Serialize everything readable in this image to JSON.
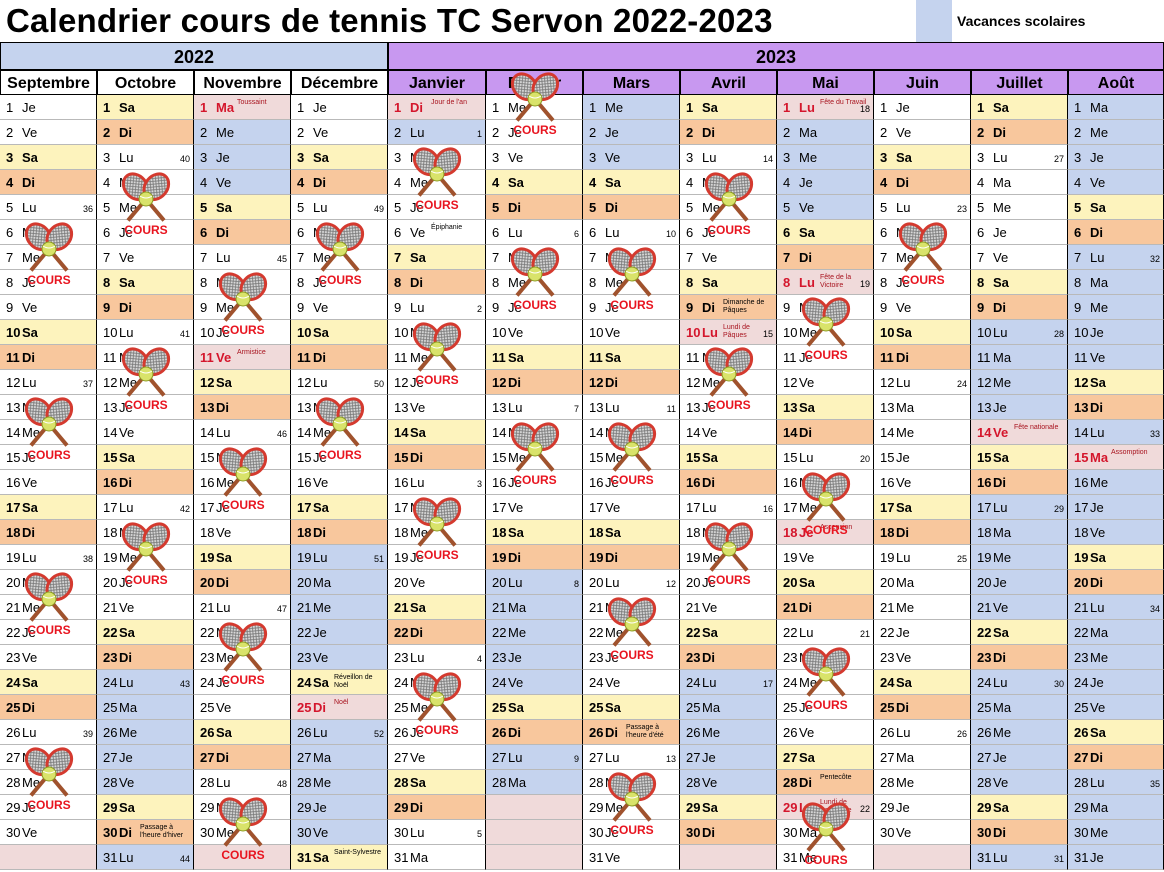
{
  "title": "Calendrier cours de tennis TC Servon  2022-2023",
  "legend": {
    "label": "Vacances scolaires",
    "color": "#c5d3ee"
  },
  "colors": {
    "sat": "#fdf3bd",
    "sun": "#f8c79d",
    "vac": "#c5d3ee",
    "hol": "#f0dada",
    "blank": "#f0dada",
    "year2022": "#c5d3ee",
    "year2023": "#c898f0",
    "month2022": "#ffffff",
    "month2023": "#c898f0"
  },
  "cours_label": "COURS",
  "years": [
    "2022",
    "2023"
  ],
  "months": [
    {
      "name": "Septembre",
      "days": [
        "1 Je",
        "2 Ve",
        "3 Sa",
        "4 Di",
        "5 Lu",
        "6 Ma",
        "7 Me",
        "8 Je",
        "9 Ve",
        "10 Sa",
        "11 Di",
        "12 Lu",
        "13 Ma",
        "14 Me",
        "15 Je",
        "16 Ve",
        "17 Sa",
        "18 Di",
        "19 Lu",
        "20 Ma",
        "21 Me",
        "22 Je",
        "23 Ve",
        "24 Sa",
        "25 Di",
        "26 Lu",
        "27 Ma",
        "28 Me",
        "29 Je",
        "30 Ve"
      ],
      "weeks": {
        "5": "36",
        "12": "37",
        "19": "38",
        "26": "39"
      },
      "vac": [],
      "cours": [
        7,
        14,
        21,
        28
      ],
      "notes": {},
      "hol": []
    },
    {
      "name": "Octobre",
      "days": [
        "1 Sa",
        "2 Di",
        "3 Lu",
        "4 Ma",
        "5 Me",
        "6 Je",
        "7 Ve",
        "8 Sa",
        "9 Di",
        "10 Lu",
        "11 Ma",
        "12 Me",
        "13 Je",
        "14 Ve",
        "15 Sa",
        "16 Di",
        "17 Lu",
        "18 Ma",
        "19 Me",
        "20 Je",
        "21 Ve",
        "22 Sa",
        "23 Di",
        "24 Lu",
        "25 Ma",
        "26 Me",
        "27 Je",
        "28 Ve",
        "29 Sa",
        "30 Di",
        "31 Lu"
      ],
      "weeks": {
        "3": "40",
        "10": "41",
        "17": "42",
        "24": "43",
        "31": "44"
      },
      "vac": [
        24,
        25,
        26,
        27,
        28,
        29,
        30,
        31
      ],
      "cours": [
        5,
        12,
        19
      ],
      "notes": {
        "30": "Passage à l'heure d'hiver"
      },
      "hol": []
    },
    {
      "name": "Novembre",
      "days": [
        "1 Ma",
        "2 Me",
        "3 Je",
        "4 Ve",
        "5 Sa",
        "6 Di",
        "7 Lu",
        "8 Ma",
        "9 Me",
        "10 Je",
        "11 Ve",
        "12 Sa",
        "13 Di",
        "14 Lu",
        "15 Ma",
        "16 Me",
        "17 Je",
        "18 Ve",
        "19 Sa",
        "20 Di",
        "21 Lu",
        "22 Ma",
        "23 Me",
        "24 Je",
        "25 Ve",
        "26 Sa",
        "27 Di",
        "28 Lu",
        "29 Ma",
        "30 Me"
      ],
      "weeks": {
        "7": "45",
        "14": "46",
        "21": "47",
        "28": "48"
      },
      "vac": [
        2,
        3,
        4,
        5,
        6
      ],
      "cours": [
        9,
        16,
        23,
        30
      ],
      "notes": {
        "1": "Toussaint",
        "11": "Armistice"
      },
      "hol": [
        1,
        11
      ]
    },
    {
      "name": "Décembre",
      "days": [
        "1 Je",
        "2 Ve",
        "3 Sa",
        "4 Di",
        "5 Lu",
        "6 Ma",
        "7 Me",
        "8 Je",
        "9 Ve",
        "10 Sa",
        "11 Di",
        "12 Lu",
        "13 Ma",
        "14 Me",
        "15 Je",
        "16 Ve",
        "17 Sa",
        "18 Di",
        "19 Lu",
        "20 Ma",
        "21 Me",
        "22 Je",
        "23 Ve",
        "24 Sa",
        "25 Di",
        "26 Lu",
        "27 Ma",
        "28 Me",
        "29 Je",
        "30 Ve",
        "31 Sa"
      ],
      "weeks": {
        "5": "49",
        "12": "50",
        "19": "51",
        "26": "52"
      },
      "vac": [
        17,
        18,
        19,
        20,
        21,
        22,
        23,
        24,
        25,
        26,
        27,
        28,
        29,
        30,
        31
      ],
      "cours": [
        7,
        14
      ],
      "notes": {
        "24": "Réveillon de Noël",
        "25": "Noël",
        "31": "Saint-Sylvestre"
      },
      "hol": [
        25
      ]
    },
    {
      "name": "Janvier",
      "days": [
        "1 Di",
        "2 Lu",
        "3 Ma",
        "4 Me",
        "5 Je",
        "6 Ve",
        "7 Sa",
        "8 Di",
        "9 Lu",
        "10 Ma",
        "11 Me",
        "12 Je",
        "13 Ve",
        "14 Sa",
        "15 Di",
        "16 Lu",
        "17 Ma",
        "18 Me",
        "19 Je",
        "20 Ve",
        "21 Sa",
        "22 Di",
        "23 Lu",
        "24 Ma",
        "25 Me",
        "26 Je",
        "27 Ve",
        "28 Sa",
        "29 Di",
        "30 Lu",
        "31 Ma"
      ],
      "weeks": {
        "2": "1",
        "9": "2",
        "16": "3",
        "23": "4",
        "30": "5"
      },
      "vac": [
        1,
        2
      ],
      "cours": [
        4,
        11,
        18,
        25
      ],
      "notes": {
        "1": "Jour de l'an",
        "6": "Épiphanie"
      },
      "hol": [
        1
      ]
    },
    {
      "name": "Février",
      "days": [
        "1 Me",
        "2 Je",
        "3 Ve",
        "4 Sa",
        "5 Di",
        "6 Lu",
        "7 Ma",
        "8 Me",
        "9 Je",
        "10 Ve",
        "11 Sa",
        "12 Di",
        "13 Lu",
        "14 Ma",
        "15 Me",
        "16 Je",
        "17 Ve",
        "18 Sa",
        "19 Di",
        "20 Lu",
        "21 Ma",
        "22 Me",
        "23 Je",
        "24 Ve",
        "25 Sa",
        "26 Di",
        "27 Lu",
        "28 Ma"
      ],
      "weeks": {
        "6": "6",
        "13": "7",
        "20": "8",
        "27": "9"
      },
      "vac": [
        18,
        19,
        20,
        21,
        22,
        23,
        24,
        25,
        26,
        27,
        28
      ],
      "cours": [
        1,
        8,
        15
      ],
      "notes": {},
      "hol": []
    },
    {
      "name": "Mars",
      "days": [
        "1 Me",
        "2 Je",
        "3 Ve",
        "4 Sa",
        "5 Di",
        "6 Lu",
        "7 Ma",
        "8 Me",
        "9 Je",
        "10 Ve",
        "11 Sa",
        "12 Di",
        "13 Lu",
        "14 Ma",
        "15 Me",
        "16 Je",
        "17 Ve",
        "18 Sa",
        "19 Di",
        "20 Lu",
        "21 Ma",
        "22 Me",
        "23 Je",
        "24 Ve",
        "25 Sa",
        "26 Di",
        "27 Lu",
        "28 Ma",
        "29 Me",
        "30 Je",
        "31 Ve"
      ],
      "weeks": {
        "6": "10",
        "13": "11",
        "20": "12",
        "27": "13"
      },
      "vac": [
        1,
        2,
        3,
        4,
        5
      ],
      "cours": [
        8,
        15,
        22,
        29
      ],
      "notes": {
        "26": "Passage à l'heure d'été"
      },
      "hol": []
    },
    {
      "name": "Avril",
      "days": [
        "1 Sa",
        "2 Di",
        "3 Lu",
        "4 Ma",
        "5 Me",
        "6 Je",
        "7 Ve",
        "8 Sa",
        "9 Di",
        "10 Lu",
        "11 Ma",
        "12 Me",
        "13 Je",
        "14 Ve",
        "15 Sa",
        "16 Di",
        "17 Lu",
        "18 Ma",
        "19 Me",
        "20 Je",
        "21 Ve",
        "22 Sa",
        "23 Di",
        "24 Lu",
        "25 Ma",
        "26 Me",
        "27 Je",
        "28 Ve",
        "29 Sa",
        "30 Di"
      ],
      "weeks": {
        "3": "14",
        "10": "15",
        "17": "16",
        "24": "17"
      },
      "vac": [
        22,
        23,
        24,
        25,
        26,
        27,
        28,
        29,
        30
      ],
      "cours": [
        5,
        12,
        19
      ],
      "notes": {
        "9": "Dimanche de Pâques",
        "10": "Lundi de Pâques"
      },
      "hol": [
        10
      ]
    },
    {
      "name": "Mai",
      "days": [
        "1 Lu",
        "2 Ma",
        "3 Me",
        "4 Je",
        "5 Ve",
        "6 Sa",
        "7 Di",
        "8 Lu",
        "9 Ma",
        "10 Me",
        "11 Je",
        "12 Ve",
        "13 Sa",
        "14 Di",
        "15 Lu",
        "16 Ma",
        "17 Me",
        "18 Je",
        "19 Ve",
        "20 Sa",
        "21 Di",
        "22 Lu",
        "23 Ma",
        "24 Me",
        "25 Je",
        "26 Ve",
        "27 Sa",
        "28 Di",
        "29 Lu",
        "30 Ma",
        "31 Me"
      ],
      "weeks": {
        "1": "18",
        "8": "19",
        "15": "20",
        "22": "21",
        "29": "22"
      },
      "vac": [
        1,
        2,
        3,
        4,
        5,
        6,
        7,
        8
      ],
      "cours": [
        10,
        17,
        24,
        31
      ],
      "notes": {
        "1": "Fête du Travail",
        "8": "Fête de la Victoire",
        "18": "Ascension",
        "28": "Pentecôte",
        "29": "Lundi de Pentecôte"
      },
      "hol": [
        1,
        8,
        18,
        29
      ]
    },
    {
      "name": "Juin",
      "days": [
        "1 Je",
        "2 Ve",
        "3 Sa",
        "4 Di",
        "5 Lu",
        "6 Ma",
        "7 Me",
        "8 Je",
        "9 Ve",
        "10 Sa",
        "11 Di",
        "12 Lu",
        "13 Ma",
        "14 Me",
        "15 Je",
        "16 Ve",
        "17 Sa",
        "18 Di",
        "19 Lu",
        "20 Ma",
        "21 Me",
        "22 Je",
        "23 Ve",
        "24 Sa",
        "25 Di",
        "26 Lu",
        "27 Ma",
        "28 Me",
        "29 Je",
        "30 Ve"
      ],
      "weeks": {
        "5": "23",
        "12": "24",
        "19": "25",
        "26": "26"
      },
      "vac": [],
      "cours": [
        7
      ],
      "notes": {},
      "hol": []
    },
    {
      "name": "Juillet",
      "days": [
        "1 Sa",
        "2 Di",
        "3 Lu",
        "4 Ma",
        "5 Me",
        "6 Je",
        "7 Ve",
        "8 Sa",
        "9 Di",
        "10 Lu",
        "11 Ma",
        "12 Me",
        "13 Je",
        "14 Ve",
        "15 Sa",
        "16 Di",
        "17 Lu",
        "18 Ma",
        "19 Me",
        "20 Je",
        "21 Ve",
        "22 Sa",
        "23 Di",
        "24 Lu",
        "25 Ma",
        "26 Me",
        "27 Je",
        "28 Ve",
        "29 Sa",
        "30 Di",
        "31 Lu"
      ],
      "weeks": {
        "3": "27",
        "10": "28",
        "17": "29",
        "24": "30",
        "31": "31"
      },
      "vac": [
        8,
        9,
        10,
        11,
        12,
        13,
        14,
        15,
        16,
        17,
        18,
        19,
        20,
        21,
        22,
        23,
        24,
        25,
        26,
        27,
        28,
        29,
        30,
        31
      ],
      "cours": [],
      "notes": {
        "14": "Fête nationale"
      },
      "hol": [
        14
      ]
    },
    {
      "name": "Août",
      "days": [
        "1 Ma",
        "2 Me",
        "3 Je",
        "4 Ve",
        "5 Sa",
        "6 Di",
        "7 Lu",
        "8 Ma",
        "9 Me",
        "10 Je",
        "11 Ve",
        "12 Sa",
        "13 Di",
        "14 Lu",
        "15 Ma",
        "16 Me",
        "17 Je",
        "18 Ve",
        "19 Sa",
        "20 Di",
        "21 Lu",
        "22 Ma",
        "23 Me",
        "24 Je",
        "25 Ve",
        "26 Sa",
        "27 Di",
        "28 Lu",
        "29 Ma",
        "30 Me",
        "31 Je"
      ],
      "weeks": {
        "7": "32",
        "14": "33",
        "21": "34",
        "28": "35"
      },
      "vac": [
        1,
        2,
        3,
        4,
        5,
        6,
        7,
        8,
        9,
        10,
        11,
        12,
        13,
        14,
        15,
        16,
        17,
        18,
        19,
        20,
        21,
        22,
        23,
        24,
        25,
        26,
        27,
        28,
        29,
        30,
        31
      ],
      "cours": [],
      "notes": {
        "15": "Assomption"
      },
      "hol": [
        15
      ]
    }
  ]
}
